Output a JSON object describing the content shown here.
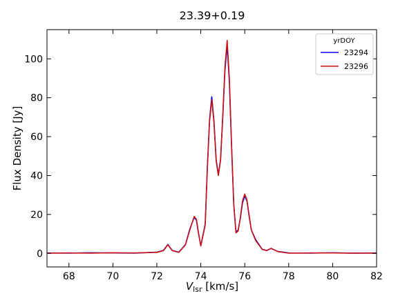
{
  "chart_data": {
    "type": "line",
    "title": "23.39+0.19",
    "xlabel_main": "V",
    "xlabel_sub": "lsr",
    "xlabel_unit": " [km/s]",
    "ylabel": "Flux Density [Jy]",
    "xlim": [
      67,
      82
    ],
    "ylim": [
      -7,
      115
    ],
    "xticks": [
      68,
      70,
      72,
      74,
      76,
      78,
      80,
      82
    ],
    "yticks": [
      0,
      20,
      40,
      60,
      80,
      100
    ],
    "legend": {
      "title": "yrDOY",
      "placement": "top-right"
    },
    "series": [
      {
        "name": "23294",
        "color": "#0000ee",
        "x": [
          67.0,
          68.0,
          69.0,
          70.0,
          71.0,
          72.0,
          72.3,
          72.5,
          72.7,
          73.0,
          73.3,
          73.5,
          73.7,
          73.8,
          73.9,
          74.0,
          74.2,
          74.3,
          74.4,
          74.5,
          74.6,
          74.7,
          74.8,
          74.9,
          75.0,
          75.1,
          75.2,
          75.3,
          75.4,
          75.5,
          75.6,
          75.7,
          75.8,
          75.9,
          76.0,
          76.1,
          76.2,
          76.3,
          76.5,
          76.8,
          77.0,
          77.2,
          77.5,
          78.0,
          79.0,
          80.0,
          81.0,
          82.0
        ],
        "y": [
          0.2,
          0.1,
          0.3,
          0.2,
          0.1,
          0.6,
          1.5,
          4.6,
          1.5,
          0.6,
          4.5,
          12.5,
          18.5,
          17.0,
          10.0,
          4.0,
          15.0,
          45.0,
          69.0,
          80.5,
          68.0,
          48.0,
          40.5,
          48.0,
          70.0,
          94.0,
          107.0,
          88.0,
          55.0,
          25.0,
          11.0,
          12.0,
          18.0,
          26.0,
          29.5,
          27.0,
          19.0,
          12.0,
          7.0,
          2.0,
          1.5,
          2.5,
          1.0,
          0.2,
          0.1,
          0.3,
          0.1,
          0.2
        ]
      },
      {
        "name": "23296",
        "color": "#cc1111",
        "x": [
          67.0,
          68.0,
          69.0,
          70.0,
          71.0,
          72.0,
          72.3,
          72.5,
          72.7,
          73.0,
          73.3,
          73.5,
          73.7,
          73.8,
          73.9,
          74.0,
          74.2,
          74.3,
          74.4,
          74.5,
          74.6,
          74.7,
          74.8,
          74.9,
          75.0,
          75.1,
          75.2,
          75.3,
          75.4,
          75.5,
          75.6,
          75.7,
          75.8,
          75.9,
          76.0,
          76.1,
          76.2,
          76.3,
          76.5,
          76.8,
          77.0,
          77.2,
          77.5,
          78.0,
          79.0,
          80.0,
          81.0,
          82.0
        ],
        "y": [
          0.1,
          0.2,
          0.1,
          0.3,
          0.2,
          0.5,
          1.4,
          4.4,
          1.4,
          0.5,
          4.3,
          12.0,
          19.0,
          17.5,
          10.3,
          3.8,
          14.5,
          44.0,
          68.0,
          79.0,
          67.0,
          47.5,
          40.0,
          48.5,
          71.0,
          96.0,
          109.5,
          90.0,
          56.0,
          25.5,
          10.5,
          11.5,
          18.5,
          27.0,
          30.5,
          27.5,
          19.5,
          12.0,
          6.5,
          2.0,
          1.4,
          2.6,
          0.9,
          0.1,
          0.2,
          0.2,
          0.1,
          0.1
        ]
      }
    ]
  }
}
